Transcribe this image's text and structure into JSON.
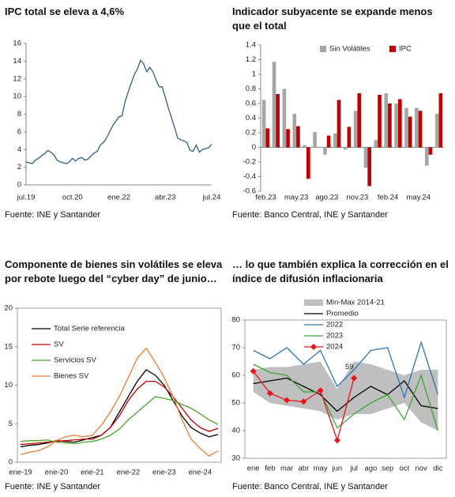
{
  "chart_data": [
    {
      "type": "line",
      "title": "IPC total se eleva a 4,6%",
      "source": "Fuente: INE y Santander",
      "categories": [
        "jul.19",
        null,
        null,
        null,
        null,
        null,
        null,
        null,
        null,
        null,
        null,
        null,
        null,
        null,
        null,
        "oct.20",
        null,
        null,
        null,
        null,
        null,
        null,
        null,
        null,
        null,
        null,
        null,
        null,
        null,
        null,
        "ene.22",
        null,
        null,
        null,
        null,
        null,
        null,
        null,
        null,
        null,
        null,
        null,
        null,
        null,
        null,
        "abr.23",
        null,
        null,
        null,
        null,
        null,
        null,
        null,
        null,
        null,
        null,
        null,
        null,
        null,
        null,
        "jul.24"
      ],
      "series": [
        {
          "name": "IPC",
          "color": "#2e5e8c",
          "values": [
            2.6,
            2.5,
            2.4,
            2.8,
            3.0,
            3.3,
            3.5,
            3.9,
            3.7,
            3.4,
            2.8,
            2.6,
            2.5,
            2.4,
            2.6,
            3.0,
            2.7,
            3.0,
            3.1,
            2.8,
            2.9,
            3.3,
            3.6,
            3.8,
            4.5,
            4.8,
            5.3,
            6.0,
            6.7,
            7.2,
            7.7,
            7.8,
            9.4,
            10.5,
            11.5,
            12.5,
            13.1,
            14.1,
            13.7,
            12.8,
            13.3,
            12.8,
            11.9,
            11.1,
            11.1,
            9.9,
            8.7,
            7.6,
            6.5,
            5.3,
            5.1,
            5.0,
            4.8,
            3.9,
            3.8,
            4.5,
            3.7,
            4.0,
            4.1,
            4.2,
            4.6
          ]
        }
      ],
      "ylim": [
        0,
        16
      ],
      "yticks": [
        0,
        2,
        4,
        6,
        8,
        10,
        12,
        14,
        16
      ],
      "grid": false,
      "legend": false
    },
    {
      "type": "bar",
      "title": "Indicador subyacente se expande menos que el total",
      "source": "Fuente: Banco Central, INE y Santander",
      "categories": [
        "feb.23",
        null,
        null,
        "may.23",
        null,
        null,
        "ago.23",
        null,
        null,
        "nov.23",
        null,
        null,
        "feb.24",
        null,
        null,
        "may.24",
        null,
        null
      ],
      "series": [
        {
          "name": "Sin Volátiles",
          "color": "#a6a6a6",
          "values": [
            0.65,
            1.17,
            0.8,
            0.46,
            0.03,
            0.21,
            -0.1,
            0.19,
            -0.03,
            0.5,
            -0.28,
            0.1,
            0.74,
            0.6,
            0.54,
            0.54,
            -0.25,
            0.46
          ]
        },
        {
          "name": "IPC",
          "color": "#c00000",
          "values": [
            0.26,
            0.73,
            0.25,
            0.29,
            -0.43,
            0.0,
            0.16,
            0.65,
            0.28,
            0.74,
            -0.53,
            0.72,
            0.6,
            0.66,
            0.42,
            0.5,
            -0.1,
            0.74
          ]
        }
      ],
      "ylim": [
        -0.6,
        1.4
      ],
      "yticks": [
        -0.6,
        -0.4,
        -0.2,
        0,
        0.2,
        0.4,
        0.6,
        0.8,
        1,
        1.2,
        1.4
      ],
      "grid": false,
      "legend": "top"
    },
    {
      "type": "line",
      "title": "Componente de bienes sin volátiles se eleva por rebote luego del “cyber day” de junio…",
      "source": "Fuente: INE y Santander",
      "categories": [
        "ene-19",
        null,
        null,
        null,
        "ene-20",
        null,
        null,
        null,
        "ene-21",
        null,
        null,
        null,
        "ene-22",
        null,
        null,
        null,
        "ene-23",
        null,
        null,
        null,
        "ene-24",
        null,
        null
      ],
      "series": [
        {
          "name": "Total Serie referencia",
          "color": "#000000",
          "values": [
            2.0,
            2.2,
            2.3,
            2.5,
            2.8,
            2.7,
            2.6,
            2.9,
            3.2,
            3.5,
            4.5,
            6.5,
            8.5,
            10.5,
            12.0,
            11.3,
            10.0,
            8.0,
            6.0,
            4.5,
            3.8,
            3.3,
            3.6
          ]
        },
        {
          "name": "SV",
          "color": "#c00000",
          "values": [
            2.3,
            2.4,
            2.5,
            2.6,
            2.7,
            2.8,
            2.9,
            3.0,
            3.0,
            3.5,
            4.5,
            6.0,
            8.0,
            9.5,
            10.5,
            10.5,
            9.8,
            8.5,
            7.0,
            5.5,
            4.5,
            4.0,
            4.4
          ]
        },
        {
          "name": "Servicios SV",
          "color": "#4ea72e",
          "values": [
            2.7,
            2.8,
            2.8,
            2.9,
            2.6,
            2.5,
            2.4,
            2.6,
            2.7,
            3.0,
            3.5,
            4.3,
            5.5,
            6.5,
            7.5,
            8.5,
            8.3,
            8.0,
            7.5,
            7.0,
            6.3,
            5.5,
            4.9
          ]
        },
        {
          "name": "Bienes SV",
          "color": "#ed7d31",
          "values": [
            1.0,
            1.3,
            1.5,
            2.0,
            2.8,
            3.3,
            3.5,
            3.3,
            3.5,
            4.8,
            6.5,
            8.5,
            11.0,
            13.5,
            14.8,
            13.0,
            11.0,
            8.5,
            5.5,
            3.0,
            1.8,
            0.8,
            1.5
          ]
        }
      ],
      "ylim": [
        0,
        20
      ],
      "yticks": [
        0,
        5,
        10,
        15,
        20
      ],
      "grid": false,
      "legend": "upper left"
    },
    {
      "type": "line",
      "title": "… lo que también explica la corrección en el índice de difusión inflacionaria",
      "source": "Fuente: Banco Central, INE y Santander",
      "categories": [
        "ene",
        "feb",
        "mar",
        "abr",
        "may",
        "jun",
        "jul",
        "ago",
        "sep",
        "oct",
        "nov",
        "dic"
      ],
      "series": [
        {
          "name": "Min-Max 2014-21",
          "color": "#bfbfbf",
          "band": true,
          "low": [
            54,
            50,
            49,
            48,
            47,
            44,
            46,
            46,
            48,
            50,
            43,
            40
          ],
          "high": [
            62,
            63,
            63,
            64,
            65,
            55,
            65,
            64,
            62,
            60,
            62,
            62
          ]
        },
        {
          "name": "Promedio",
          "color": "#000000",
          "values": [
            57,
            58,
            59,
            56,
            53,
            47,
            52,
            56,
            53,
            58,
            49,
            48
          ]
        },
        {
          "name": "2022",
          "color": "#2e75b6",
          "values": [
            69,
            66,
            70,
            64,
            69,
            56,
            62,
            69,
            70,
            52,
            72,
            53
          ]
        },
        {
          "name": "2023",
          "color": "#3aa635",
          "values": [
            64,
            61,
            60,
            54,
            54,
            41,
            46,
            50,
            53,
            44,
            60,
            40
          ]
        },
        {
          "name": "2024",
          "color": "#e8141c",
          "markers": true,
          "values": [
            61.5,
            53.5,
            51,
            50.5,
            54.5,
            36.5,
            59,
            null,
            null,
            null,
            null,
            null
          ]
        }
      ],
      "label_point": [
        4,
        6
      ],
      "ylim": [
        30,
        80
      ],
      "yticks": [
        30,
        40,
        50,
        60,
        70,
        80
      ],
      "grid": false,
      "legend": "top"
    }
  ]
}
